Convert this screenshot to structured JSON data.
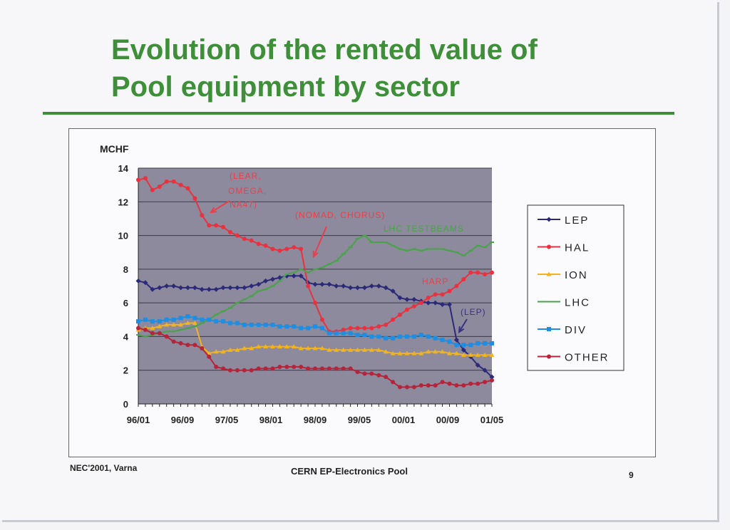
{
  "slide": {
    "title_line1": "Evolution of the rented value of",
    "title_line2": "Pool equipment by sector",
    "footer_left": "NEC'2001, Varna",
    "footer_center": "CERN EP-Electronics Pool",
    "page_number": "9"
  },
  "colors": {
    "title_green": "#3f8f3a",
    "plot_bg": "#8d8a9d",
    "annotation_red": "#e8404b",
    "annotation_green": "#4aa24a",
    "annotation_blue": "#39327e"
  },
  "chart_data": {
    "type": "line",
    "ylabel": "MCHF",
    "ylim": [
      0,
      14
    ],
    "yticks": [
      0,
      2,
      4,
      6,
      8,
      10,
      12,
      14
    ],
    "xtick_labels": [
      "96/01",
      "96/09",
      "97/05",
      "98/01",
      "98/09",
      "99/05",
      "00/01",
      "00/09",
      "01/05"
    ],
    "grid": true,
    "legend_position": "right",
    "series": [
      {
        "name": "LEP",
        "color": "#2b2a78",
        "marker": "diamond",
        "values": [
          7.3,
          7.2,
          6.8,
          6.9,
          7.0,
          7.0,
          6.9,
          6.9,
          6.9,
          6.8,
          6.8,
          6.8,
          6.9,
          6.9,
          6.9,
          6.9,
          7.0,
          7.1,
          7.3,
          7.4,
          7.5,
          7.6,
          7.6,
          7.6,
          7.2,
          7.1,
          7.1,
          7.1,
          7.0,
          7.0,
          6.9,
          6.9,
          6.9,
          7.0,
          7.0,
          6.9,
          6.7,
          6.3,
          6.2,
          6.2,
          6.1,
          6.0,
          6.0,
          5.9,
          5.9,
          3.8,
          3.2,
          2.8,
          2.3,
          2.0,
          1.6
        ]
      },
      {
        "name": "HAL",
        "color": "#e8323f",
        "marker": "circle",
        "values": [
          13.3,
          13.4,
          12.7,
          12.9,
          13.2,
          13.2,
          13.0,
          12.8,
          12.2,
          11.2,
          10.6,
          10.6,
          10.5,
          10.2,
          10.0,
          9.8,
          9.7,
          9.5,
          9.4,
          9.2,
          9.1,
          9.2,
          9.3,
          9.2,
          7.0,
          6.0,
          5.0,
          4.3,
          4.3,
          4.4,
          4.5,
          4.5,
          4.5,
          4.5,
          4.6,
          4.7,
          5.0,
          5.3,
          5.6,
          5.8,
          6.0,
          6.3,
          6.5,
          6.5,
          6.7,
          7.0,
          7.4,
          7.8,
          7.8,
          7.7,
          7.8
        ]
      },
      {
        "name": "ION",
        "color": "#f2b31c",
        "marker": "triangle",
        "values": [
          4.4,
          4.5,
          4.5,
          4.6,
          4.7,
          4.7,
          4.7,
          4.8,
          4.8,
          3.4,
          3.0,
          3.1,
          3.1,
          3.2,
          3.2,
          3.3,
          3.3,
          3.4,
          3.4,
          3.4,
          3.4,
          3.4,
          3.4,
          3.3,
          3.3,
          3.3,
          3.3,
          3.2,
          3.2,
          3.2,
          3.2,
          3.2,
          3.2,
          3.2,
          3.2,
          3.1,
          3.0,
          3.0,
          3.0,
          3.0,
          3.0,
          3.1,
          3.1,
          3.1,
          3.0,
          3.0,
          2.9,
          2.9,
          2.9,
          2.9,
          2.9
        ]
      },
      {
        "name": "LHC",
        "color": "#4aa24a",
        "marker": "dash",
        "values": [
          4.1,
          4.0,
          4.1,
          4.2,
          4.3,
          4.3,
          4.4,
          4.5,
          4.6,
          4.8,
          5.0,
          5.3,
          5.5,
          5.7,
          6.0,
          6.2,
          6.4,
          6.7,
          6.8,
          7.0,
          7.3,
          7.7,
          7.8,
          8.0,
          7.8,
          8.0,
          8.1,
          8.3,
          8.5,
          8.9,
          9.3,
          9.8,
          10.0,
          9.6,
          9.6,
          9.6,
          9.4,
          9.2,
          9.1,
          9.2,
          9.1,
          9.2,
          9.2,
          9.2,
          9.1,
          9.0,
          8.8,
          9.1,
          9.4,
          9.3,
          9.6
        ]
      },
      {
        "name": "DIV",
        "color": "#1f8ee0",
        "marker": "square",
        "values": [
          4.9,
          5.0,
          4.9,
          4.9,
          5.0,
          5.0,
          5.1,
          5.2,
          5.1,
          5.0,
          5.0,
          4.9,
          4.9,
          4.8,
          4.8,
          4.7,
          4.7,
          4.7,
          4.7,
          4.7,
          4.6,
          4.6,
          4.6,
          4.5,
          4.5,
          4.6,
          4.5,
          4.2,
          4.2,
          4.2,
          4.2,
          4.1,
          4.1,
          4.0,
          4.0,
          3.9,
          3.9,
          4.0,
          4.0,
          4.0,
          4.1,
          4.0,
          3.9,
          3.8,
          3.7,
          3.5,
          3.5,
          3.5,
          3.6,
          3.6,
          3.6
        ]
      },
      {
        "name": "OTHER",
        "color": "#b5243a",
        "marker": "circle",
        "values": [
          4.5,
          4.4,
          4.2,
          4.2,
          4.0,
          3.7,
          3.6,
          3.5,
          3.5,
          3.3,
          2.8,
          2.2,
          2.1,
          2.0,
          2.0,
          2.0,
          2.0,
          2.1,
          2.1,
          2.1,
          2.2,
          2.2,
          2.2,
          2.2,
          2.1,
          2.1,
          2.1,
          2.1,
          2.1,
          2.1,
          2.1,
          1.9,
          1.8,
          1.8,
          1.7,
          1.6,
          1.3,
          1.0,
          1.0,
          1.0,
          1.1,
          1.1,
          1.1,
          1.3,
          1.2,
          1.1,
          1.1,
          1.2,
          1.2,
          1.3,
          1.4
        ]
      }
    ],
    "annotations": [
      {
        "text": "(LEAR,",
        "color": "#e8404b"
      },
      {
        "text": "OMEGA,",
        "color": "#e8404b"
      },
      {
        "text": "NA47)",
        "color": "#e8404b"
      },
      {
        "text": "(NOMAD, CHORUS)",
        "color": "#e8404b"
      },
      {
        "text": "LHC TESTBEAMS",
        "color": "#4aa24a"
      },
      {
        "text": "HARP",
        "color": "#e8404b"
      },
      {
        "text": "(LEP)",
        "color": "#39327e"
      }
    ]
  }
}
